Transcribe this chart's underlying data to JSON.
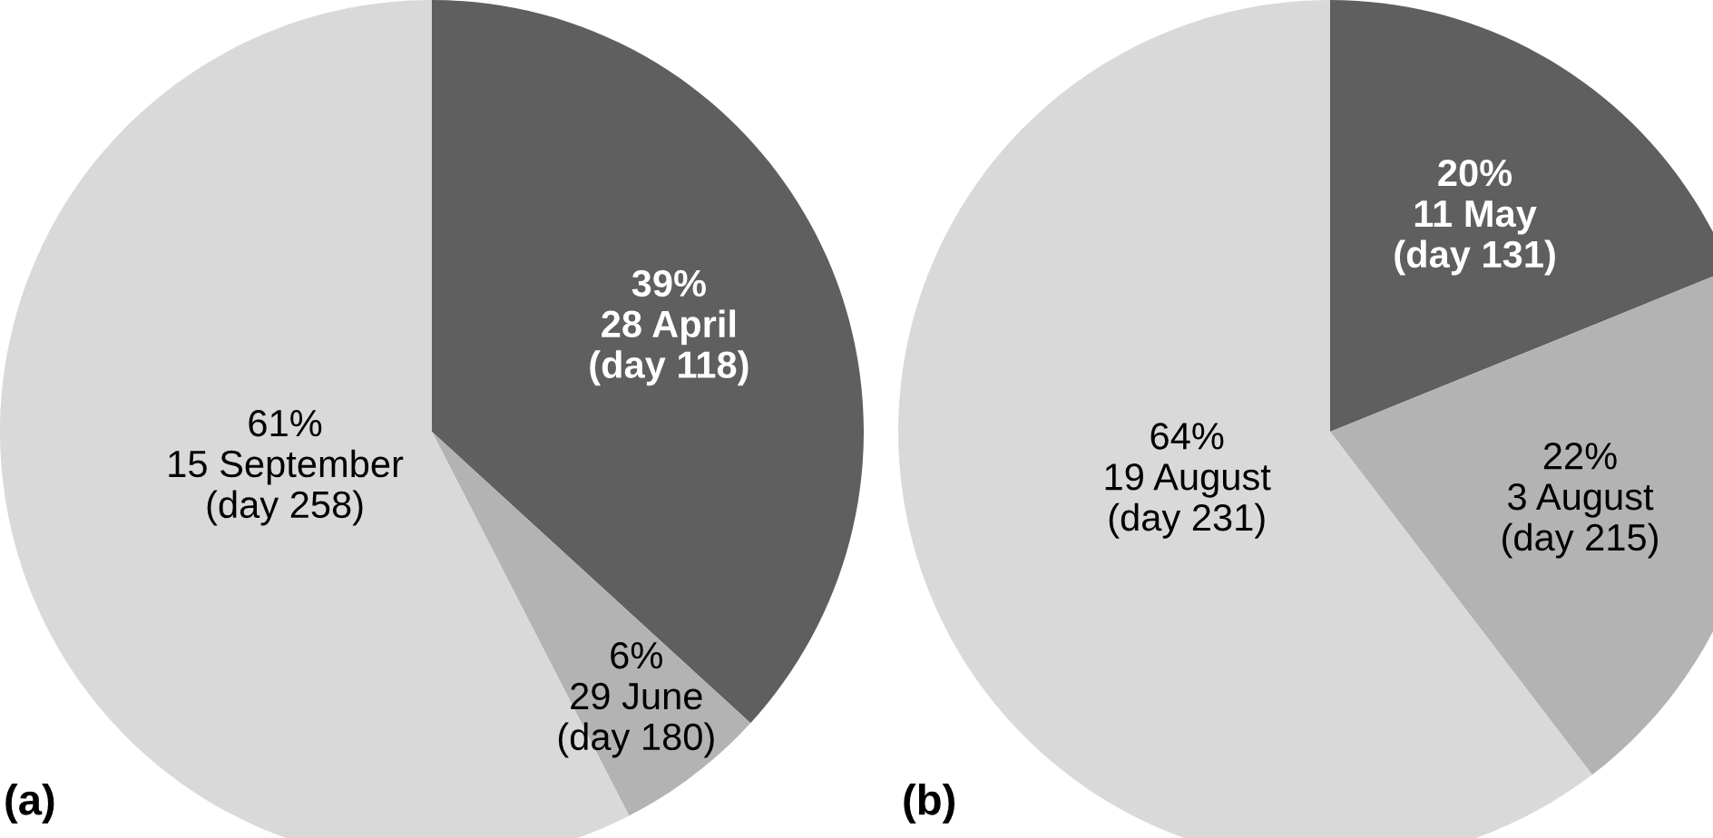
{
  "chart_data": [
    {
      "type": "pie",
      "title": "(a)",
      "categories": [
        "28 April\n(day 118)",
        "29 June\n(day 180)",
        "15 September\n(day 258)"
      ],
      "values": [
        39,
        6,
        61
      ],
      "value_labels": [
        "39%",
        "6%",
        "61%"
      ],
      "colors": [
        "#5f5f5f",
        "#b3b3b3",
        "#d9d9d9"
      ]
    },
    {
      "type": "pie",
      "title": "(b)",
      "categories": [
        "11 May\n(day 131)",
        "3 August\n(day 215)",
        "19 August\n(day 231)"
      ],
      "values": [
        20,
        22,
        64
      ],
      "value_labels": [
        "20%",
        "22%",
        "64%"
      ],
      "colors": [
        "#5f5f5f",
        "#b3b3b3",
        "#d9d9d9"
      ]
    }
  ]
}
